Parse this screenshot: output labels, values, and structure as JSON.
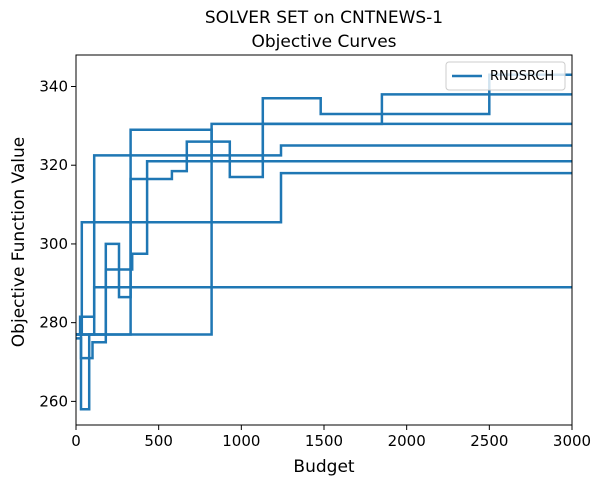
{
  "chart_data": {
    "type": "line",
    "title": [
      "SOLVER SET on CNTNEWS-1",
      "Objective Curves"
    ],
    "xlabel": "Budget",
    "ylabel": "Objective Function Value",
    "xlim": [
      0,
      3000
    ],
    "ylim": [
      254,
      348
    ],
    "xticks": [
      0,
      500,
      1000,
      1500,
      2000,
      2500,
      3000
    ],
    "yticks": [
      260,
      280,
      300,
      320,
      340
    ],
    "grid": false,
    "legend": {
      "placement": "top-right",
      "entries": [
        "RNDSRCH"
      ]
    },
    "color": "#1f77b4",
    "series": [
      {
        "name": "RNDSRCH",
        "x": [
          0,
          25,
          25,
          110,
          110,
          1240,
          1240,
          3000
        ],
        "y": [
          277,
          277,
          281.5,
          281.5,
          322.5,
          322.5,
          325,
          325
        ]
      },
      {
        "name": "",
        "x": [
          0,
          30,
          30,
          80,
          80,
          110,
          110,
          3000
        ],
        "y": [
          276,
          276,
          258,
          258,
          277,
          277,
          289,
          289
        ]
      },
      {
        "name": "",
        "x": [
          0,
          35,
          35,
          1240,
          1240,
          3000
        ],
        "y": [
          277,
          277,
          305.5,
          305.5,
          318,
          318
        ]
      },
      {
        "name": "",
        "x": [
          0,
          30,
          30,
          100,
          100,
          180,
          180,
          340,
          340,
          430,
          430,
          1130,
          1130,
          1480,
          1480,
          2500,
          2500,
          3000
        ],
        "y": [
          277,
          277,
          271,
          271,
          275,
          275,
          293.5,
          293.5,
          297.5,
          297.5,
          321,
          321,
          337,
          337,
          333,
          333,
          343,
          343
        ]
      },
      {
        "name": "",
        "x": [
          0,
          80,
          80,
          180,
          180,
          260,
          260,
          330,
          330,
          580,
          580,
          670,
          670,
          930,
          930,
          1130,
          1130,
          1850,
          1850,
          3000
        ],
        "y": [
          277,
          277,
          277,
          277,
          300,
          300,
          286.5,
          286.5,
          316.5,
          316.5,
          318.5,
          318.5,
          326,
          326,
          317,
          317,
          330.5,
          330.5,
          338,
          338
        ]
      },
      {
        "name": "",
        "x": [
          0,
          330,
          330,
          820,
          820,
          3000
        ],
        "y": [
          277,
          277,
          329,
          329,
          321,
          321
        ]
      },
      {
        "name": "",
        "x": [
          0,
          820,
          820,
          3000
        ],
        "y": [
          277,
          277,
          330.5,
          330.5
        ]
      }
    ]
  }
}
